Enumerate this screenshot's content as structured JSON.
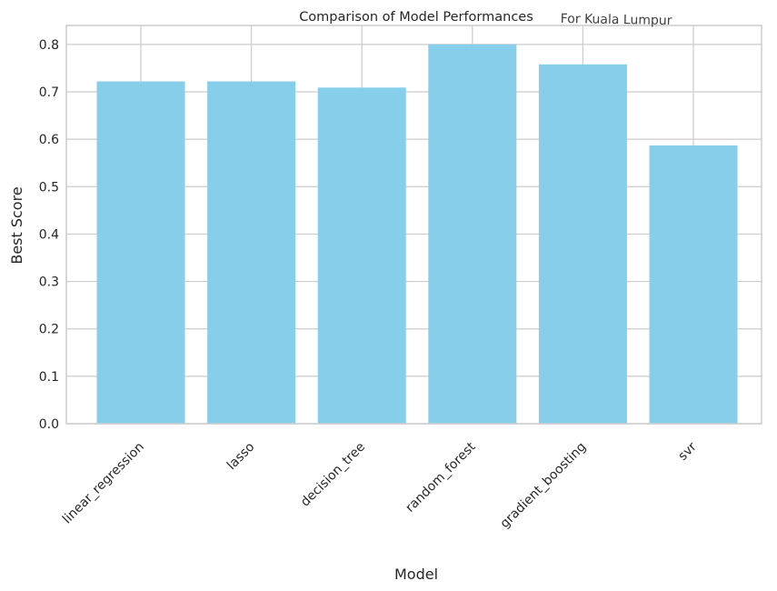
{
  "chart_data": {
    "type": "bar",
    "title": "Comparison of Model Performances",
    "subtitle": "For Kuala Lumpur",
    "xlabel": "Model",
    "ylabel": "Best Score",
    "categories": [
      "linear_regression",
      "lasso",
      "decision_tree",
      "random_forest",
      "gradient_boosting",
      "svr"
    ],
    "values": [
      0.722,
      0.722,
      0.709,
      0.8,
      0.758,
      0.587
    ],
    "ylim": [
      0,
      0.84
    ],
    "yticks": [
      0.0,
      0.1,
      0.2,
      0.3,
      0.4,
      0.5,
      0.6,
      0.7,
      0.8
    ],
    "ytick_labels": [
      "0.0",
      "0.1",
      "0.2",
      "0.3",
      "0.4",
      "0.5",
      "0.6",
      "0.7",
      "0.8"
    ],
    "grid": true,
    "colors": {
      "bar": "#87ceeb",
      "grid": "#cccccc",
      "frame": "#cccccc"
    }
  }
}
